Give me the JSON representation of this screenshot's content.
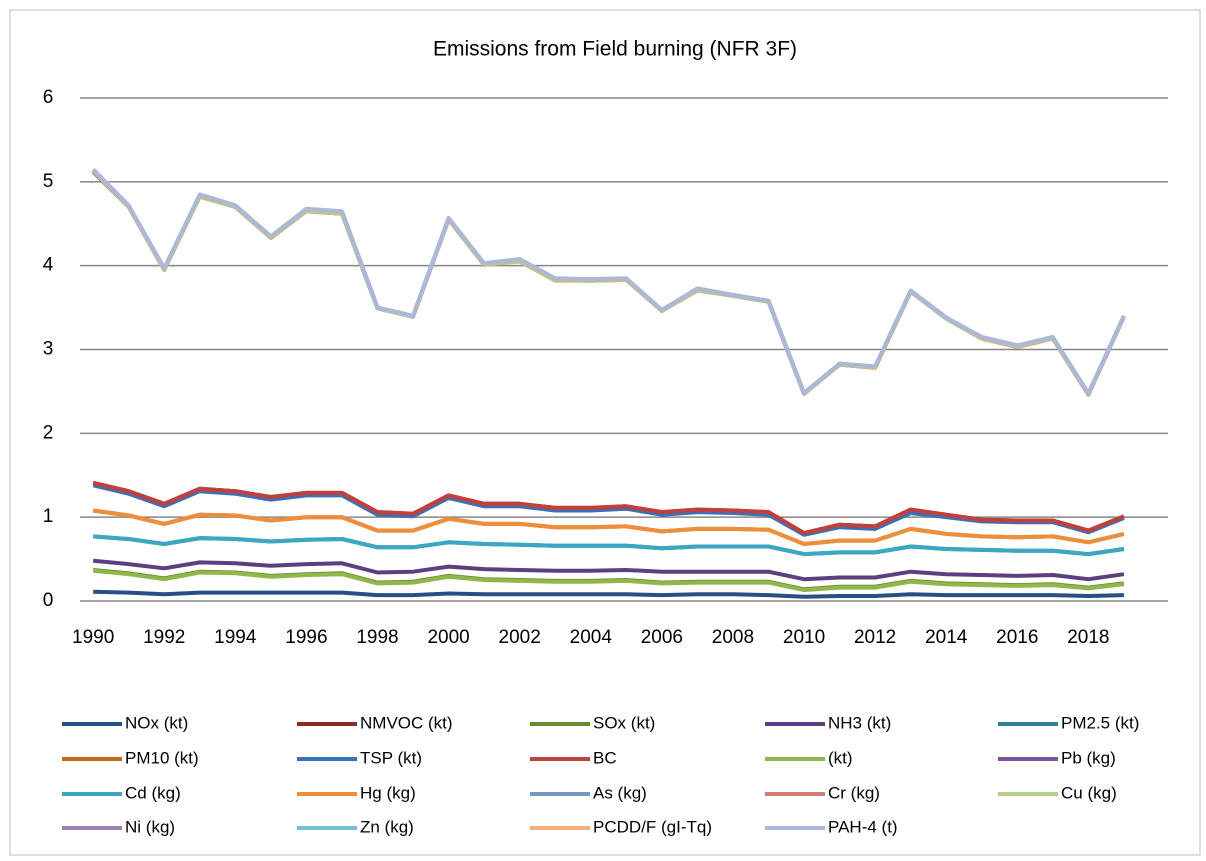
{
  "chart_data": {
    "type": "line",
    "title": "Emissions from Field burning (NFR 3F)",
    "x": [
      1990,
      1991,
      1992,
      1993,
      1994,
      1995,
      1996,
      1997,
      1998,
      1999,
      2000,
      2001,
      2002,
      2003,
      2004,
      2005,
      2006,
      2007,
      2008,
      2009,
      2010,
      2011,
      2012,
      2013,
      2014,
      2015,
      2016,
      2017,
      2018,
      2019
    ],
    "xlim": [
      1989.63,
      2020.24
    ],
    "xticks": [
      1990,
      1992,
      1994,
      1996,
      1998,
      2000,
      2002,
      2004,
      2006,
      2008,
      2010,
      2012,
      2014,
      2016,
      2018
    ],
    "ylim": [
      0,
      6
    ],
    "yticks": [
      0,
      1,
      2,
      3,
      4,
      5,
      6
    ],
    "grid": true,
    "series": [
      {
        "name": "NOx (kt)",
        "color": "#254f85",
        "values": [
          0.11,
          0.1,
          0.08,
          0.1,
          0.1,
          0.1,
          0.1,
          0.1,
          0.07,
          0.07,
          0.09,
          0.08,
          0.08,
          0.08,
          0.08,
          0.08,
          0.07,
          0.08,
          0.08,
          0.07,
          0.05,
          0.06,
          0.06,
          0.08,
          0.07,
          0.07,
          0.07,
          0.07,
          0.06,
          0.07
        ]
      },
      {
        "name": "NMVOC (kt)",
        "color": "#8c2a27",
        "values": [
          1.41,
          1.31,
          1.16,
          1.34,
          1.31,
          1.24,
          1.29,
          1.29,
          1.06,
          1.04,
          1.26,
          1.16,
          1.16,
          1.11,
          1.11,
          1.13,
          1.06,
          1.09,
          1.08,
          1.06,
          0.81,
          0.91,
          0.89,
          1.09,
          1.03,
          0.97,
          0.96,
          0.96,
          0.84,
          1.01
        ]
      },
      {
        "name": "SOx (kt)",
        "color": "#6f8a32",
        "values": [
          0.37,
          0.33,
          0.27,
          0.35,
          0.34,
          0.3,
          0.32,
          0.33,
          0.22,
          0.23,
          0.3,
          0.26,
          0.25,
          0.24,
          0.24,
          0.25,
          0.22,
          0.23,
          0.23,
          0.23,
          0.14,
          0.17,
          0.17,
          0.24,
          0.21,
          0.2,
          0.19,
          0.2,
          0.16,
          0.21
        ]
      },
      {
        "name": "NH3 (kt)",
        "color": "#5b3f7e",
        "values": [
          0.48,
          0.44,
          0.39,
          0.46,
          0.45,
          0.42,
          0.44,
          0.45,
          0.34,
          0.35,
          0.41,
          0.38,
          0.37,
          0.36,
          0.36,
          0.37,
          0.35,
          0.35,
          0.35,
          0.35,
          0.26,
          0.28,
          0.28,
          0.35,
          0.32,
          0.31,
          0.3,
          0.31,
          0.26,
          0.32
        ]
      },
      {
        "name": "PM2.5 (kt)",
        "color": "#2f8196",
        "values": [
          0.77,
          0.74,
          0.68,
          0.75,
          0.74,
          0.71,
          0.73,
          0.74,
          0.64,
          0.64,
          0.7,
          0.68,
          0.67,
          0.66,
          0.66,
          0.66,
          0.63,
          0.65,
          0.65,
          0.65,
          0.56,
          0.58,
          0.58,
          0.65,
          0.62,
          0.61,
          0.6,
          0.6,
          0.56,
          0.62
        ]
      },
      {
        "name": "PM10 (kt)",
        "color": "#c46a1e",
        "values": [
          1.08,
          1.02,
          0.92,
          1.03,
          1.02,
          0.96,
          1.0,
          1.0,
          0.84,
          0.84,
          0.98,
          0.92,
          0.92,
          0.88,
          0.88,
          0.89,
          0.83,
          0.86,
          0.86,
          0.85,
          0.68,
          0.72,
          0.72,
          0.86,
          0.8,
          0.77,
          0.76,
          0.77,
          0.7,
          0.8
        ]
      },
      {
        "name": "TSP (kt)",
        "color": "#3b6fb6",
        "values": [
          1.38,
          1.28,
          1.13,
          1.31,
          1.28,
          1.21,
          1.26,
          1.26,
          1.03,
          1.01,
          1.23,
          1.13,
          1.13,
          1.08,
          1.08,
          1.1,
          1.03,
          1.06,
          1.05,
          1.03,
          0.79,
          0.88,
          0.86,
          1.05,
          1.0,
          0.95,
          0.94,
          0.94,
          0.82,
          0.99
        ]
      },
      {
        "name": "BC",
        "color": "#c0413c",
        "values": [
          1.41,
          1.31,
          1.16,
          1.34,
          1.31,
          1.24,
          1.29,
          1.29,
          1.06,
          1.04,
          1.26,
          1.16,
          1.16,
          1.11,
          1.11,
          1.13,
          1.06,
          1.09,
          1.08,
          1.06,
          0.81,
          0.91,
          0.89,
          1.09,
          1.03,
          0.97,
          0.96,
          0.96,
          0.84,
          1.01
        ]
      },
      {
        "name": "(kt)",
        "color": "#8fb84a",
        "values": [
          0.36,
          0.32,
          0.26,
          0.34,
          0.33,
          0.29,
          0.31,
          0.32,
          0.21,
          0.22,
          0.29,
          0.25,
          0.24,
          0.23,
          0.23,
          0.24,
          0.21,
          0.22,
          0.22,
          0.22,
          0.13,
          0.16,
          0.16,
          0.23,
          0.2,
          0.19,
          0.18,
          0.19,
          0.15,
          0.2
        ]
      },
      {
        "name": "Pb (kg)",
        "color": "#7b56a0",
        "values": [
          5.12,
          4.7,
          3.95,
          4.83,
          4.7,
          4.33,
          4.65,
          4.62,
          3.49,
          3.39,
          4.55,
          4.01,
          4.06,
          3.83,
          3.82,
          3.83,
          3.46,
          3.71,
          3.64,
          3.57,
          2.47,
          2.82,
          2.78,
          3.69,
          3.37,
          3.13,
          3.03,
          3.13,
          2.46,
          3.39
        ]
      },
      {
        "name": "Cd (kg)",
        "color": "#3ba7c2",
        "values": [
          0.77,
          0.74,
          0.68,
          0.75,
          0.74,
          0.71,
          0.73,
          0.74,
          0.64,
          0.64,
          0.7,
          0.68,
          0.67,
          0.66,
          0.66,
          0.66,
          0.63,
          0.65,
          0.65,
          0.65,
          0.56,
          0.58,
          0.58,
          0.65,
          0.62,
          0.61,
          0.6,
          0.6,
          0.56,
          0.62
        ]
      },
      {
        "name": "Hg (kg)",
        "color": "#ed8f3a",
        "values": [
          1.08,
          1.02,
          0.92,
          1.03,
          1.02,
          0.96,
          1.0,
          1.0,
          0.84,
          0.84,
          0.98,
          0.92,
          0.92,
          0.88,
          0.88,
          0.89,
          0.83,
          0.86,
          0.86,
          0.85,
          0.68,
          0.72,
          0.72,
          0.86,
          0.8,
          0.77,
          0.76,
          0.77,
          0.7,
          0.8
        ]
      },
      {
        "name": "As (kg)",
        "color": "#7a97c9",
        "values": [
          5.14,
          4.71,
          3.96,
          4.84,
          4.71,
          4.34,
          4.67,
          4.64,
          3.5,
          3.4,
          4.56,
          4.02,
          4.07,
          3.84,
          3.83,
          3.84,
          3.47,
          3.72,
          3.65,
          3.58,
          2.48,
          2.83,
          2.79,
          3.7,
          3.38,
          3.14,
          3.04,
          3.14,
          2.47,
          3.4
        ]
      },
      {
        "name": "Cr (kg)",
        "color": "#d17e7b",
        "values": [
          5.14,
          4.71,
          3.96,
          4.84,
          4.71,
          4.34,
          4.67,
          4.64,
          3.5,
          3.4,
          4.56,
          4.02,
          4.07,
          3.84,
          3.83,
          3.84,
          3.47,
          3.72,
          3.65,
          3.58,
          2.48,
          2.83,
          2.79,
          3.7,
          3.38,
          3.14,
          3.04,
          3.14,
          2.47,
          3.4
        ]
      },
      {
        "name": "Cu (kg)",
        "color": "#b3cc86",
        "values": [
          5.13,
          4.7,
          3.95,
          4.82,
          4.7,
          4.33,
          4.65,
          4.62,
          3.49,
          3.39,
          4.55,
          4.01,
          4.05,
          3.82,
          3.82,
          3.83,
          3.46,
          3.7,
          3.64,
          3.57,
          2.47,
          2.82,
          2.78,
          3.69,
          3.37,
          3.13,
          3.03,
          3.13,
          2.46,
          3.39
        ]
      },
      {
        "name": "Ni (kg)",
        "color": "#9b85b5",
        "values": [
          5.14,
          4.71,
          3.96,
          4.84,
          4.71,
          4.34,
          4.67,
          4.64,
          3.5,
          3.4,
          4.56,
          4.02,
          4.07,
          3.84,
          3.83,
          3.84,
          3.47,
          3.72,
          3.65,
          3.58,
          2.48,
          2.83,
          2.79,
          3.7,
          3.38,
          3.14,
          3.04,
          3.14,
          2.47,
          3.4
        ]
      },
      {
        "name": "Zn (kg)",
        "color": "#76bfd3",
        "values": [
          5.14,
          4.71,
          3.96,
          4.84,
          4.71,
          4.34,
          4.67,
          4.64,
          3.5,
          3.4,
          4.56,
          4.02,
          4.07,
          3.84,
          3.83,
          3.84,
          3.47,
          3.72,
          3.65,
          3.58,
          2.48,
          2.83,
          2.79,
          3.7,
          3.38,
          3.14,
          3.04,
          3.14,
          2.47,
          3.4
        ]
      },
      {
        "name": "PCDD/F (gI-Tq)",
        "color": "#f5b07c",
        "values": [
          5.14,
          4.71,
          3.96,
          4.84,
          4.71,
          4.34,
          4.67,
          4.64,
          3.5,
          3.4,
          4.56,
          4.02,
          4.07,
          3.84,
          3.83,
          3.84,
          3.47,
          3.72,
          3.65,
          3.58,
          2.48,
          2.83,
          2.79,
          3.7,
          3.38,
          3.14,
          3.04,
          3.14,
          2.47,
          3.4
        ]
      },
      {
        "name": "PAH-4 (t)",
        "color": "#a9b9d7",
        "values": [
          5.15,
          4.72,
          3.97,
          4.85,
          4.72,
          4.35,
          4.68,
          4.65,
          3.5,
          3.4,
          4.57,
          4.03,
          4.08,
          3.85,
          3.84,
          3.85,
          3.47,
          3.73,
          3.65,
          3.58,
          2.48,
          2.83,
          2.8,
          3.7,
          3.38,
          3.15,
          3.05,
          3.15,
          2.48,
          3.4
        ]
      }
    ]
  }
}
